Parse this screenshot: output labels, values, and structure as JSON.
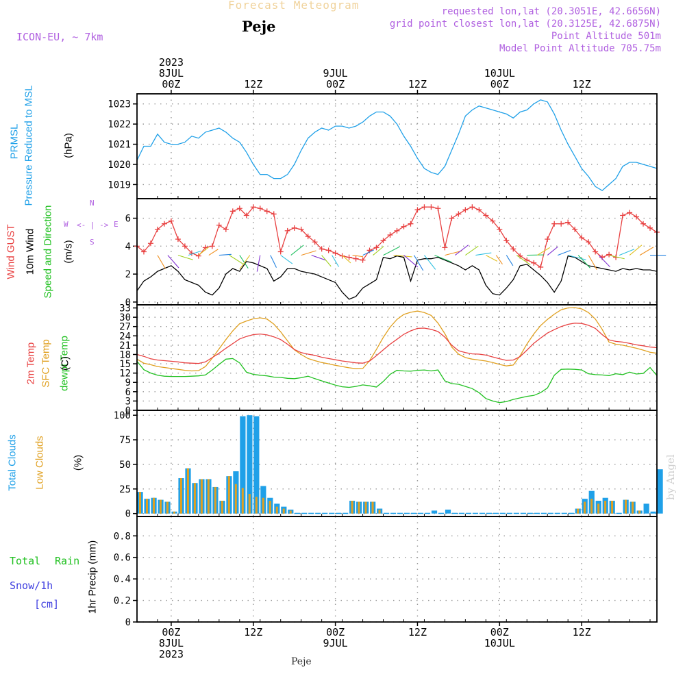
{
  "header": {
    "title": "Forecast Meteogram",
    "location": "Peje",
    "model": "ICON-EU, ~ 7km",
    "requested": "requested lon,lat (20.3051E, 42.6656N)",
    "gridpoint": "grid point closest lon,lat (20.3125E, 42.6875N)",
    "point_alt": "Point Altitude 501m",
    "model_alt": "Model Point Altitude 705.75m",
    "credit": "by Angel",
    "footer": "Peje"
  },
  "colors": {
    "pressure": "#1fa0e8",
    "gust": "#e84040",
    "wind": "#000000",
    "direction": "#20c020",
    "temp2m": "#e84040",
    "sfc": "#e0a020",
    "dewpt": "#20c020",
    "cloud_total": "#1fa0e8",
    "cloud_low": "#e0a020",
    "rain": "#20c020",
    "snow": "#4040e0",
    "purple": "#b060e0"
  },
  "time_axis": {
    "top": [
      {
        "hour": 5,
        "lines": [
          "2023",
          "8JUL",
          "00Z"
        ]
      },
      {
        "hour": 17,
        "lines": [
          "12Z"
        ]
      },
      {
        "hour": 29,
        "lines": [
          "9JUL",
          "00Z"
        ]
      },
      {
        "hour": 41,
        "lines": [
          "12Z"
        ]
      },
      {
        "hour": 53,
        "lines": [
          "10JUL",
          "00Z"
        ]
      },
      {
        "hour": 65,
        "lines": [
          "12Z"
        ]
      }
    ],
    "bottom": [
      {
        "hour": 5,
        "lines": [
          "00Z",
          "8JUL",
          "2023"
        ]
      },
      {
        "hour": 17,
        "lines": [
          "12Z"
        ]
      },
      {
        "hour": 29,
        "lines": [
          "00Z",
          "9JUL"
        ]
      },
      {
        "hour": 41,
        "lines": [
          "12Z"
        ]
      },
      {
        "hour": 53,
        "lines": [
          "00Z",
          "10JUL"
        ]
      },
      {
        "hour": 65,
        "lines": [
          "12Z"
        ]
      }
    ]
  },
  "direction_label": {
    "n": "N",
    "s": "S",
    "w": "W",
    "e": "E",
    "arrow": "<- | ->"
  },
  "panels": {
    "pressure": {
      "labels": [
        "PRMSL",
        "Pressure Reduced to MSL"
      ],
      "units": "(hPa)"
    },
    "wind": {
      "labels": [
        "Wind GUST",
        "10m Wind",
        "Speed and Direction"
      ],
      "units": "(m/s)"
    },
    "temp": {
      "labels": [
        "2m Temp",
        "SFC Temp",
        "dewpt Temp"
      ],
      "units": "(C)"
    },
    "clouds": {
      "labels": [
        "Total Clouds",
        "Low Clouds"
      ],
      "units": "(%)"
    },
    "precip": {
      "labels": [
        "Total",
        "Rain",
        "Snow/1h",
        "[cm]"
      ],
      "units": "1hr Precip (mm)"
    }
  },
  "chart_data": [
    {
      "type": "line",
      "title": "PRMSL Pressure Reduced to MSL",
      "ylabel": "(hPa)",
      "ylim": [
        1018.3,
        1023.5
      ],
      "yticks": [
        1019,
        1020,
        1021,
        1022,
        1023
      ],
      "x_hours": "0..76, 0 = 7JUL 19Z",
      "series": [
        {
          "name": "PRMSL",
          "values": [
            1020.2,
            1020.9,
            1020.9,
            1021.5,
            1021.1,
            1021.0,
            1021.0,
            1021.1,
            1021.4,
            1021.3,
            1021.6,
            1021.7,
            1021.8,
            1021.6,
            1021.3,
            1021.1,
            1020.6,
            1020.0,
            1019.5,
            1019.5,
            1019.3,
            1019.3,
            1019.5,
            1020.0,
            1020.7,
            1021.3,
            1021.6,
            1021.8,
            1021.7,
            1021.9,
            1021.9,
            1021.8,
            1021.9,
            1022.1,
            1022.4,
            1022.6,
            1022.6,
            1022.4,
            1022.0,
            1021.4,
            1020.9,
            1020.3,
            1019.8,
            1019.6,
            1019.5,
            1019.9,
            1020.7,
            1021.5,
            1022.4,
            1022.7,
            1022.9,
            1022.8,
            1022.7,
            1022.6,
            1022.5,
            1022.3,
            1022.6,
            1022.7,
            1023.0,
            1023.2,
            1023.1,
            1022.5,
            1021.7,
            1021.0,
            1020.4,
            1019.8,
            1019.4,
            1018.9,
            1018.7,
            1019.0,
            1019.3,
            1019.9,
            1020.1,
            1020.1,
            1020.0,
            1019.9,
            1019.8
          ]
        }
      ]
    },
    {
      "type": "line",
      "title": "Wind GUST / 10m Wind Speed and Direction",
      "ylabel": "(m/s)",
      "ylim": [
        -0.2,
        7.4
      ],
      "yticks": [
        0,
        2,
        4,
        6
      ],
      "series": [
        {
          "name": "Wind GUST",
          "values": [
            4.0,
            3.6,
            4.2,
            5.2,
            5.6,
            5.8,
            4.5,
            4.0,
            3.5,
            3.3,
            3.9,
            4.0,
            5.5,
            5.2,
            6.5,
            6.7,
            6.2,
            6.8,
            6.7,
            6.5,
            6.3,
            3.6,
            5.1,
            5.3,
            5.2,
            4.7,
            4.3,
            3.8,
            3.7,
            3.5,
            3.3,
            3.2,
            3.1,
            3.0,
            3.7,
            3.9,
            4.4,
            4.8,
            5.1,
            5.4,
            5.6,
            6.6,
            6.8,
            6.8,
            6.7,
            3.9,
            6.0,
            6.3,
            6.6,
            6.8,
            6.6,
            6.2,
            5.8,
            5.2,
            4.4,
            3.8,
            3.3,
            3.0,
            2.8,
            2.5,
            4.5,
            5.6,
            5.6,
            5.7,
            5.2,
            4.6,
            4.3,
            3.6,
            3.2,
            3.4,
            3.2,
            6.2,
            6.4,
            6.1,
            5.6,
            5.3,
            5.0
          ]
        },
        {
          "name": "10m Wind",
          "values": [
            0.8,
            1.5,
            1.8,
            2.2,
            2.4,
            2.6,
            2.2,
            1.6,
            1.4,
            1.2,
            0.7,
            0.5,
            1.0,
            2.0,
            2.4,
            2.2,
            2.9,
            2.8,
            2.6,
            2.4,
            1.5,
            1.8,
            2.4,
            2.4,
            2.2,
            2.1,
            2.0,
            1.8,
            1.6,
            1.4,
            0.7,
            0.2,
            0.4,
            1.0,
            1.3,
            1.6,
            3.2,
            3.1,
            3.3,
            3.2,
            1.5,
            3.0,
            3.1,
            3.1,
            3.2,
            3.0,
            2.8,
            2.6,
            2.3,
            2.6,
            2.3,
            1.2,
            0.6,
            0.5,
            1.0,
            1.6,
            2.6,
            2.7,
            2.3,
            1.9,
            1.4,
            0.7,
            1.5,
            3.3,
            3.2,
            2.9,
            2.6,
            2.5,
            2.4,
            2.3,
            2.2,
            2.4,
            2.3,
            2.4,
            2.3,
            2.3,
            2.2
          ]
        }
      ]
    },
    {
      "type": "line",
      "title": "2m Temp / SFC Temp / dewpt Temp",
      "ylabel": "(C)",
      "ylim": [
        0,
        34
      ],
      "yticks": [
        0,
        3,
        6,
        9,
        12,
        15,
        18,
        21,
        24,
        27,
        30,
        33
      ],
      "series": [
        {
          "name": "2m Temp",
          "values": [
            18.0,
            17.4,
            16.6,
            16.2,
            16.0,
            15.8,
            15.6,
            15.3,
            15.2,
            15.1,
            15.6,
            17.0,
            18.4,
            20.0,
            21.5,
            23.0,
            23.8,
            24.4,
            24.6,
            24.3,
            23.7,
            22.8,
            21.3,
            19.6,
            18.6,
            18.1,
            17.7,
            17.1,
            16.7,
            16.3,
            15.9,
            15.6,
            15.3,
            15.2,
            15.9,
            17.6,
            19.5,
            21.3,
            22.9,
            24.5,
            25.6,
            26.4,
            26.5,
            26.1,
            25.4,
            23.6,
            21.0,
            19.2,
            18.6,
            18.2,
            18.1,
            17.8,
            17.2,
            16.6,
            16.1,
            16.2,
            17.3,
            19.4,
            21.6,
            23.3,
            24.9,
            26.0,
            27.0,
            27.7,
            28.1,
            28.0,
            27.4,
            26.4,
            24.4,
            22.7,
            22.2,
            22.0,
            21.6,
            21.1,
            20.8,
            20.4,
            20.2
          ]
        },
        {
          "name": "SFC Temp",
          "values": [
            16.5,
            15.2,
            14.7,
            14.1,
            13.8,
            13.5,
            13.2,
            12.9,
            12.7,
            12.8,
            14.1,
            16.8,
            19.8,
            22.8,
            25.6,
            27.9,
            28.8,
            29.5,
            29.8,
            29.4,
            27.8,
            25.3,
            22.4,
            19.5,
            18.0,
            16.7,
            16.0,
            15.4,
            15.0,
            14.5,
            14.1,
            13.7,
            13.4,
            13.5,
            16.0,
            19.6,
            23.5,
            26.8,
            29.3,
            30.9,
            31.6,
            32.0,
            31.5,
            30.6,
            28.1,
            24.7,
            20.4,
            18.1,
            17.0,
            16.5,
            16.2,
            15.9,
            15.4,
            14.8,
            14.3,
            14.6,
            17.6,
            21.4,
            24.6,
            27.3,
            29.3,
            31.0,
            32.4,
            33.0,
            33.1,
            32.7,
            31.5,
            29.4,
            26.1,
            22.0,
            21.3,
            21.0,
            20.5,
            20.0,
            19.4,
            18.7,
            18.4
          ]
        },
        {
          "name": "dewpt Temp",
          "values": [
            15.8,
            13.1,
            12.0,
            11.3,
            11.0,
            10.9,
            10.9,
            10.9,
            11.0,
            11.1,
            11.4,
            13.0,
            14.8,
            16.5,
            16.7,
            15.3,
            12.3,
            11.6,
            11.3,
            11.1,
            10.7,
            10.6,
            10.3,
            10.2,
            10.5,
            11.0,
            10.2,
            9.5,
            8.8,
            8.1,
            7.6,
            7.4,
            7.7,
            8.2,
            7.9,
            7.5,
            9.3,
            11.6,
            12.9,
            12.7,
            12.6,
            12.9,
            13.0,
            12.7,
            13.0,
            9.5,
            8.6,
            8.4,
            7.7,
            7.0,
            5.7,
            3.8,
            3.0,
            2.5,
            2.8,
            3.5,
            4.0,
            4.5,
            4.8,
            5.7,
            7.2,
            11.3,
            13.2,
            13.3,
            13.2,
            13.0,
            11.8,
            11.5,
            11.4,
            11.2,
            11.8,
            11.5,
            12.3,
            11.7,
            11.9,
            13.8,
            11.2
          ]
        }
      ]
    },
    {
      "type": "bar",
      "title": "Total Clouds / Low Clouds",
      "ylabel": "(%)",
      "ylim": [
        -3,
        105
      ],
      "yticks": [
        0,
        25,
        50,
        75,
        100
      ],
      "series": [
        {
          "name": "Total Clouds",
          "values": [
            22,
            15,
            16,
            14,
            12,
            2,
            36,
            46,
            31,
            35,
            35,
            27,
            13,
            38,
            43,
            99,
            100,
            99,
            28,
            16,
            10,
            7,
            4,
            0,
            0,
            0,
            0,
            0,
            0,
            0,
            0,
            13,
            12,
            12,
            12,
            5,
            0,
            0,
            0,
            0,
            0,
            0,
            0,
            3,
            0,
            4,
            0,
            0,
            0,
            0,
            0,
            0,
            0,
            0,
            0,
            0,
            0,
            0,
            0,
            0,
            0,
            0,
            0,
            0,
            5,
            15,
            23,
            13,
            16,
            13,
            0,
            14,
            12,
            3,
            10,
            2,
            45
          ]
        },
        {
          "name": "Low Clouds",
          "values": [
            22,
            15,
            16,
            14,
            12,
            2,
            36,
            46,
            31,
            35,
            35,
            27,
            13,
            38,
            30,
            26,
            20,
            17,
            16,
            13,
            7,
            5,
            3,
            0,
            0,
            0,
            0,
            0,
            0,
            0,
            0,
            13,
            12,
            12,
            12,
            4,
            0,
            0,
            0,
            0,
            0,
            0,
            0,
            0,
            0,
            0,
            0,
            0,
            0,
            0,
            0,
            0,
            0,
            0,
            0,
            0,
            0,
            0,
            0,
            0,
            0,
            0,
            0,
            0,
            5,
            12,
            15,
            10,
            13,
            13,
            0,
            14,
            12,
            3,
            0,
            0,
            0
          ]
        }
      ]
    },
    {
      "type": "bar",
      "title": "1hr Precip",
      "ylabel": "1hr Precip (mm)",
      "ylim": [
        0,
        0.98
      ],
      "yticks": [
        0,
        0.2,
        0.4,
        0.6,
        0.8
      ],
      "series": [
        {
          "name": "Total Rain",
          "values": []
        },
        {
          "name": "Snow/1h",
          "values": []
        }
      ]
    }
  ]
}
